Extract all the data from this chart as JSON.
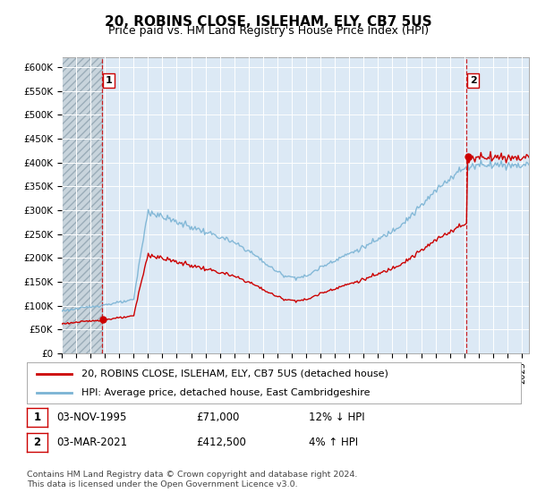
{
  "title": "20, ROBINS CLOSE, ISLEHAM, ELY, CB7 5US",
  "subtitle": "Price paid vs. HM Land Registry's House Price Index (HPI)",
  "ylim": [
    0,
    620000
  ],
  "yticks": [
    0,
    50000,
    100000,
    150000,
    200000,
    250000,
    300000,
    350000,
    400000,
    450000,
    500000,
    550000,
    600000
  ],
  "xlim_start": 1993.0,
  "xlim_end": 2025.5,
  "hpi_color": "#7ab3d4",
  "price_color": "#cc0000",
  "vline_color": "#cc0000",
  "plot_bg": "#dce9f5",
  "hatch_bg": "#c8c8c8",
  "grid_color": "#ffffff",
  "title_fontsize": 11,
  "subtitle_fontsize": 9,
  "sale_dates": [
    1995.83,
    2021.17
  ],
  "sale_prices": [
    71000,
    412500
  ],
  "annotation1_label": "1",
  "annotation1_date": "03-NOV-1995",
  "annotation1_price": "£71,000",
  "annotation1_hpi": "12% ↓ HPI",
  "annotation2_label": "2",
  "annotation2_date": "03-MAR-2021",
  "annotation2_price": "£412,500",
  "annotation2_hpi": "4% ↑ HPI",
  "legend_line1": "20, ROBINS CLOSE, ISLEHAM, ELY, CB7 5US (detached house)",
  "legend_line2": "HPI: Average price, detached house, East Cambridgeshire",
  "footer": "Contains HM Land Registry data © Crown copyright and database right 2024.\nThis data is licensed under the Open Government Licence v3.0."
}
